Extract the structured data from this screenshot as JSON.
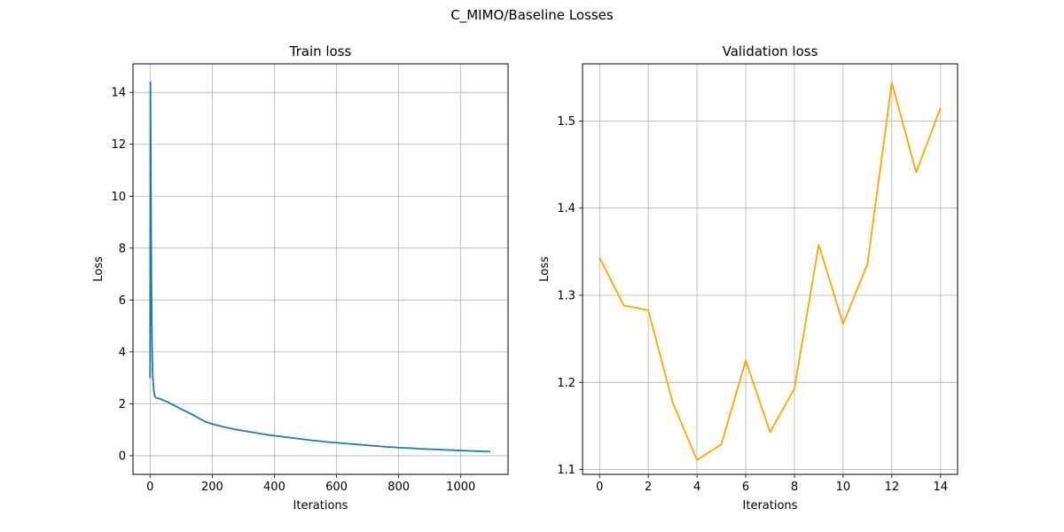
{
  "figure": {
    "suptitle": "C_MIMO/Baseline Losses"
  },
  "chart_data": [
    {
      "type": "line",
      "title": "Train loss",
      "xlabel": "Iterations",
      "ylabel": "Loss",
      "grid": true,
      "xlim": [
        -55,
        1152
      ],
      "ylim": [
        -0.72,
        15.1
      ],
      "xticks": [
        0,
        200,
        400,
        600,
        800,
        1000
      ],
      "yticks": [
        0,
        2,
        4,
        6,
        8,
        10,
        12,
        14
      ],
      "color": "#1f77b4",
      "series": [
        {
          "x": [
            0,
            1,
            2,
            3,
            4,
            5,
            6,
            7,
            8,
            10,
            12,
            15,
            18,
            22,
            30,
            40,
            50,
            60,
            70,
            80,
            90,
            100,
            120,
            140,
            160,
            180,
            200,
            220,
            240,
            260,
            280,
            300,
            320,
            340,
            360,
            380,
            400,
            420,
            440,
            460,
            480,
            500,
            520,
            540,
            560,
            580,
            600,
            620,
            640,
            660,
            680,
            700,
            720,
            740,
            760,
            780,
            800,
            820,
            840,
            860,
            880,
            900,
            920,
            940,
            960,
            980,
            1000,
            1020,
            1040,
            1060,
            1080,
            1095
          ],
          "y": [
            3.0,
            14.4,
            12.2,
            9.5,
            7.2,
            5.7,
            4.6,
            3.8,
            3.3,
            2.8,
            2.5,
            2.3,
            2.25,
            2.22,
            2.2,
            2.15,
            2.1,
            2.05,
            1.98,
            1.92,
            1.86,
            1.8,
            1.68,
            1.56,
            1.42,
            1.3,
            1.22,
            1.16,
            1.1,
            1.05,
            1.0,
            0.96,
            0.92,
            0.88,
            0.84,
            0.8,
            0.77,
            0.74,
            0.71,
            0.68,
            0.65,
            0.62,
            0.59,
            0.57,
            0.54,
            0.52,
            0.5,
            0.48,
            0.46,
            0.44,
            0.42,
            0.4,
            0.38,
            0.36,
            0.34,
            0.33,
            0.31,
            0.3,
            0.29,
            0.27,
            0.26,
            0.25,
            0.24,
            0.23,
            0.22,
            0.21,
            0.2,
            0.19,
            0.18,
            0.17,
            0.16,
            0.16
          ]
        }
      ]
    },
    {
      "type": "line",
      "title": "Validation loss",
      "xlabel": "Iterations",
      "ylabel": "Loss",
      "grid": true,
      "xlim": [
        -0.7,
        14.7
      ],
      "ylim": [
        1.0945,
        1.5655
      ],
      "xticks": [
        0,
        2,
        4,
        6,
        8,
        10,
        12,
        14
      ],
      "yticks": [
        1.1,
        1.2,
        1.3,
        1.4,
        1.5
      ],
      "color": "#ffa500",
      "series": [
        {
          "x": [
            0,
            1,
            2,
            3,
            4,
            5,
            6,
            7,
            8,
            9,
            10,
            11,
            12,
            13,
            14
          ],
          "y": [
            1.343,
            1.288,
            1.283,
            1.177,
            1.111,
            1.129,
            1.225,
            1.143,
            1.193,
            1.358,
            1.267,
            1.336,
            1.544,
            1.441,
            1.515
          ]
        }
      ]
    }
  ]
}
